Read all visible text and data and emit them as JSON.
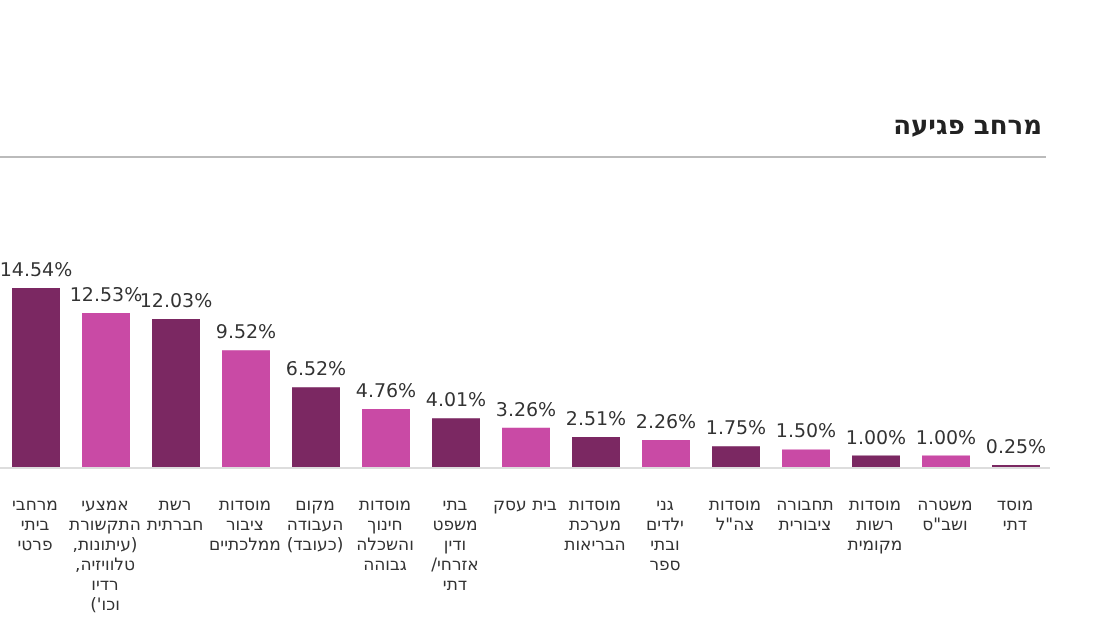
{
  "chart_data": {
    "type": "bar",
    "title": "מרחב פגיעה",
    "categories": [
      "מרחבי ביתי פרטי",
      "אמצעי התקשורת (עיתונות, טלוויזיה, רדיו וכו')",
      "רשת חברתית",
      "מוסדות ציבור ממלכתיים",
      "מקום העבודה (כעובד)",
      "מוסדות חינוך והשכלה גבוהה",
      "בתי משפט ודין אזרחי/ דתי",
      "בית עסק",
      "מוסדות מערכת הבריאות",
      "גני ילדים ובתי ספר",
      "מוסדות צה\"ל",
      "תחבורה ציבורית",
      "מוסדות רשות מקומית",
      "משטרה ושב\"ס",
      "מוסד דתי"
    ],
    "values": [
      14.54,
      12.53,
      12.03,
      9.52,
      6.52,
      4.76,
      4.01,
      3.26,
      2.51,
      2.26,
      1.75,
      1.5,
      1.0,
      1.0,
      0.25
    ],
    "value_labels": [
      "14.54%",
      "12.53%",
      "12.03%",
      "9.52%",
      "6.52%",
      "4.76%",
      "4.01%",
      "3.26%",
      "2.51%",
      "2.26%",
      "1.75%",
      "1.50%",
      "1.00%",
      "1.00%",
      "0.25%"
    ],
    "colors": [
      "#7b2862",
      "#c94aa5",
      "#7b2862",
      "#c94aa5",
      "#7b2862",
      "#c94aa5",
      "#7b2862",
      "#c94aa5",
      "#7b2862",
      "#c94aa5",
      "#7b2862",
      "#c94aa5",
      "#7b2862",
      "#c94aa5",
      "#7b2862"
    ],
    "legend": false
  }
}
